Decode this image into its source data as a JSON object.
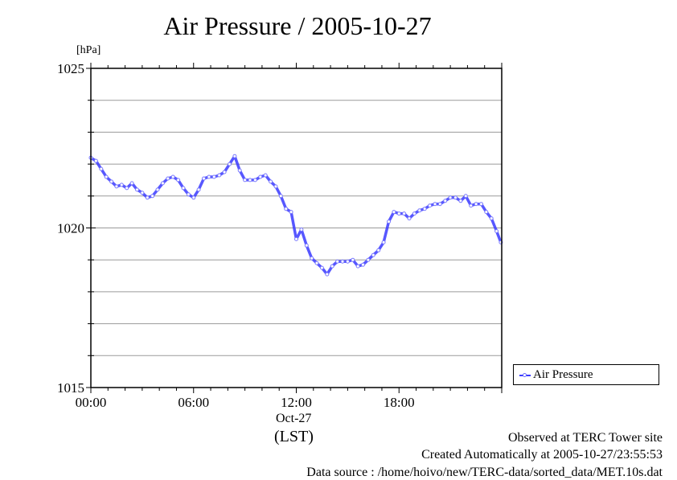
{
  "title": "Air Pressure / 2005-10-27",
  "unit_label": "[hPa]",
  "date_label": "Oct-27",
  "timezone_label": "(LST)",
  "legend": {
    "label": "Air Pressure",
    "color": "#3a3aff"
  },
  "footer": {
    "observed": "Observed at TERC Tower site",
    "created": "Created Automatically at 2005-10-27/23:55:53",
    "source": "Data source : /home/hoivo/new/TERC-data/sorted_data/MET.10s.dat"
  },
  "chart_data": {
    "type": "line",
    "title": "Air Pressure / 2005-10-27",
    "ylabel": "[hPa]",
    "xlabel": "(LST)",
    "xlim": [
      0,
      24
    ],
    "ylim": [
      1015,
      1025
    ],
    "x_ticks": [
      {
        "value": 0,
        "label": "00:00"
      },
      {
        "value": 6,
        "label": "06:00"
      },
      {
        "value": 12,
        "label": "12:00"
      },
      {
        "value": 18,
        "label": "18:00"
      }
    ],
    "y_ticks": [
      {
        "value": 1015,
        "label": "1015"
      },
      {
        "value": 1020,
        "label": "1020"
      },
      {
        "value": 1025,
        "label": "1025"
      }
    ],
    "y_grid": [
      1016,
      1017,
      1018,
      1019,
      1020,
      1021,
      1022,
      1023,
      1024
    ],
    "grid": true,
    "legend_position": "right",
    "series": [
      {
        "name": "Air Pressure",
        "color": "#3a3aff",
        "x": [
          0.0,
          0.3,
          0.6,
          0.9,
          1.2,
          1.5,
          1.8,
          2.1,
          2.4,
          2.7,
          3.0,
          3.3,
          3.6,
          3.9,
          4.2,
          4.5,
          4.8,
          5.1,
          5.4,
          5.7,
          6.0,
          6.3,
          6.6,
          6.9,
          7.2,
          7.5,
          7.8,
          8.1,
          8.4,
          8.7,
          9.0,
          9.3,
          9.6,
          9.9,
          10.2,
          10.5,
          10.8,
          11.1,
          11.4,
          11.7,
          12.0,
          12.3,
          12.6,
          12.9,
          13.2,
          13.5,
          13.8,
          14.1,
          14.4,
          14.7,
          15.0,
          15.3,
          15.6,
          15.9,
          16.2,
          16.5,
          16.8,
          17.1,
          17.4,
          17.7,
          18.0,
          18.3,
          18.6,
          18.9,
          19.2,
          19.5,
          19.8,
          20.1,
          20.4,
          20.7,
          21.0,
          21.3,
          21.6,
          21.9,
          22.2,
          22.5,
          22.8,
          23.1,
          23.4,
          23.7,
          23.95
        ],
        "values": [
          1022.2,
          1022.1,
          1021.85,
          1021.6,
          1021.45,
          1021.3,
          1021.35,
          1021.25,
          1021.4,
          1021.2,
          1021.1,
          1020.95,
          1021.0,
          1021.2,
          1021.4,
          1021.55,
          1021.6,
          1021.5,
          1021.25,
          1021.05,
          1020.95,
          1021.2,
          1021.55,
          1021.6,
          1021.6,
          1021.65,
          1021.75,
          1022.0,
          1022.25,
          1021.8,
          1021.5,
          1021.5,
          1021.5,
          1021.6,
          1021.65,
          1021.45,
          1021.3,
          1021.0,
          1020.6,
          1020.5,
          1019.65,
          1019.95,
          1019.45,
          1019.05,
          1018.9,
          1018.75,
          1018.55,
          1018.8,
          1018.95,
          1018.95,
          1018.95,
          1019.0,
          1018.8,
          1018.85,
          1019.0,
          1019.15,
          1019.3,
          1019.55,
          1020.2,
          1020.5,
          1020.45,
          1020.45,
          1020.3,
          1020.45,
          1020.55,
          1020.6,
          1020.7,
          1020.75,
          1020.75,
          1020.85,
          1020.95,
          1020.95,
          1020.85,
          1021.0,
          1020.7,
          1020.75,
          1020.75,
          1020.5,
          1020.3,
          1019.9,
          1019.55
        ]
      }
    ]
  }
}
